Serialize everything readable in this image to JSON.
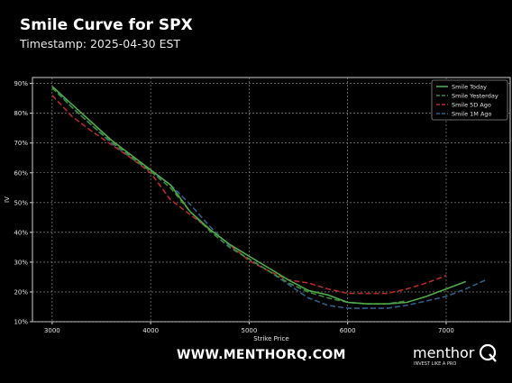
{
  "header": {
    "title": "Smile Curve for SPX",
    "timestamp": "Timestamp: 2025-04-30 EST"
  },
  "footer": {
    "url": "WWW.MENTHORQ.COM",
    "logo_word": "menthor",
    "logo_tagline": "INVEST LIKE A PRO",
    "logo_letter": "Q"
  },
  "chart_data": {
    "type": "line",
    "xlabel": "Strike Price",
    "ylabel": "IV",
    "xlim": [
      2800,
      7650
    ],
    "ylim": [
      10,
      92
    ],
    "x_ticks": [
      3000,
      4000,
      5000,
      6000,
      7000
    ],
    "y_ticks": [
      10,
      20,
      30,
      40,
      50,
      60,
      70,
      80,
      90
    ],
    "y_tick_suffix": "%",
    "grid": true,
    "legend_position": "top-right",
    "series": [
      {
        "name": "Smile Today",
        "color": "#4fa84a",
        "dash": "solid",
        "points": [
          [
            3000,
            89
          ],
          [
            3200,
            83
          ],
          [
            3400,
            77
          ],
          [
            3600,
            71
          ],
          [
            3800,
            66
          ],
          [
            4000,
            61
          ],
          [
            4200,
            56
          ],
          [
            4400,
            47
          ],
          [
            4600,
            41
          ],
          [
            4800,
            36
          ],
          [
            5000,
            32
          ],
          [
            5200,
            28
          ],
          [
            5400,
            24
          ],
          [
            5600,
            20.5
          ],
          [
            5800,
            19
          ],
          [
            6000,
            16.5
          ],
          [
            6200,
            16
          ],
          [
            6400,
            16
          ],
          [
            6600,
            16.5
          ],
          [
            6800,
            18.5
          ],
          [
            7000,
            21
          ],
          [
            7200,
            23.5
          ]
        ]
      },
      {
        "name": "Smile Yesterday",
        "color": "#3e8b3a",
        "dash": "dashed",
        "points": [
          [
            3000,
            88.5
          ],
          [
            3200,
            82
          ],
          [
            3400,
            76
          ],
          [
            3600,
            70.5
          ],
          [
            3800,
            65.5
          ],
          [
            4000,
            60.5
          ],
          [
            4200,
            55
          ],
          [
            4400,
            47
          ],
          [
            4600,
            40.5
          ],
          [
            4800,
            35
          ],
          [
            5000,
            31
          ],
          [
            5200,
            27
          ],
          [
            5400,
            23
          ],
          [
            5600,
            20
          ],
          [
            5800,
            18
          ],
          [
            6000,
            16.5
          ],
          [
            6200,
            16
          ],
          [
            6400,
            16
          ],
          [
            6600,
            17
          ]
        ]
      },
      {
        "name": "Smile 5D Ago",
        "color": "#b52a2a",
        "dash": "dashed",
        "points": [
          [
            3000,
            86
          ],
          [
            3200,
            79
          ],
          [
            3400,
            74
          ],
          [
            3600,
            69.5
          ],
          [
            3800,
            65
          ],
          [
            4000,
            60
          ],
          [
            4200,
            51
          ],
          [
            4400,
            46
          ],
          [
            4600,
            41
          ],
          [
            4800,
            36
          ],
          [
            5000,
            30.5
          ],
          [
            5200,
            27
          ],
          [
            5400,
            24
          ],
          [
            5600,
            23
          ],
          [
            5800,
            21
          ],
          [
            6000,
            19.5
          ],
          [
            6200,
            19.5
          ],
          [
            6400,
            19.5
          ],
          [
            6600,
            21
          ],
          [
            6800,
            23
          ],
          [
            7000,
            25.5
          ]
        ]
      },
      {
        "name": "Smile 1M Ago",
        "color": "#2e5f8a",
        "dash": "dashed",
        "points": [
          [
            3000,
            89
          ],
          [
            3200,
            82
          ],
          [
            3400,
            76
          ],
          [
            3600,
            70
          ],
          [
            3800,
            65
          ],
          [
            4000,
            60.5
          ],
          [
            4200,
            56
          ],
          [
            4400,
            49.5
          ],
          [
            4600,
            42
          ],
          [
            4800,
            35.5
          ],
          [
            5000,
            31
          ],
          [
            5200,
            27
          ],
          [
            5400,
            22.5
          ],
          [
            5600,
            18
          ],
          [
            5800,
            15.5
          ],
          [
            6000,
            14.5
          ],
          [
            6200,
            14.5
          ],
          [
            6400,
            14.5
          ],
          [
            6600,
            15.5
          ],
          [
            6800,
            17
          ],
          [
            7000,
            18.5
          ],
          [
            7200,
            21
          ],
          [
            7400,
            24
          ]
        ]
      }
    ]
  }
}
